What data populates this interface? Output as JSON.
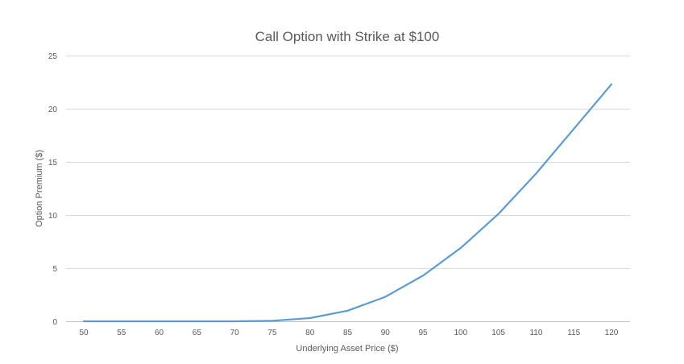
{
  "chart_data": {
    "type": "line",
    "title": "Call Option with Strike at $100",
    "xlabel": "Underlying Asset Price ($)",
    "ylabel": "Option Premium ($)",
    "x": [
      50,
      55,
      60,
      65,
      70,
      75,
      80,
      85,
      90,
      95,
      100,
      105,
      110,
      115,
      120
    ],
    "series": [
      {
        "values": [
          0,
          0,
          0,
          0,
          0,
          0.05,
          0.3,
          1.0,
          2.3,
          4.3,
          6.9,
          10.1,
          13.9,
          18.1,
          22.3
        ],
        "color": "#5b9bd5"
      }
    ],
    "ylim": [
      0,
      25
    ],
    "y_ticks": [
      0,
      5,
      10,
      15,
      20,
      25
    ],
    "grid": true,
    "legend": "none"
  }
}
